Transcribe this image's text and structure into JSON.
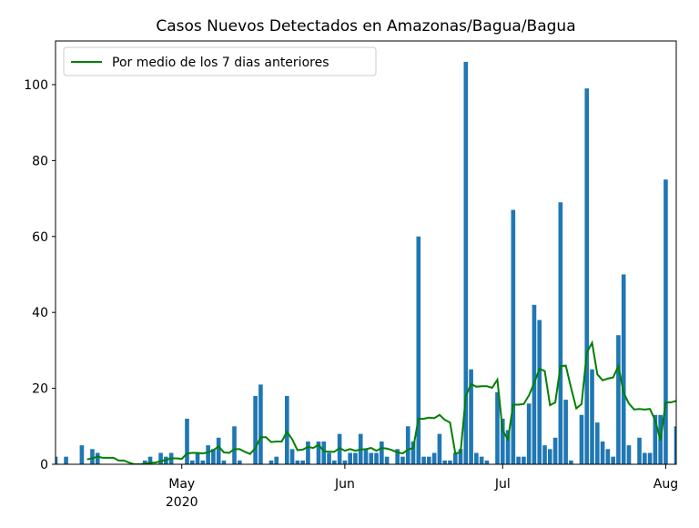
{
  "chart_data": {
    "type": "bar",
    "title": "Casos Nuevos Detectados en Amazonas/Bagua/Bagua",
    "x": [
      "2020-04-07",
      "2020-04-08",
      "2020-04-09",
      "2020-04-10",
      "2020-04-11",
      "2020-04-12",
      "2020-04-13",
      "2020-04-14",
      "2020-04-15",
      "2020-04-16",
      "2020-04-17",
      "2020-04-18",
      "2020-04-19",
      "2020-04-20",
      "2020-04-21",
      "2020-04-22",
      "2020-04-23",
      "2020-04-24",
      "2020-04-25",
      "2020-04-26",
      "2020-04-27",
      "2020-04-28",
      "2020-04-29",
      "2020-04-30",
      "2020-05-01",
      "2020-05-02",
      "2020-05-03",
      "2020-05-04",
      "2020-05-05",
      "2020-05-06",
      "2020-05-07",
      "2020-05-08",
      "2020-05-09",
      "2020-05-10",
      "2020-05-11",
      "2020-05-12",
      "2020-05-13",
      "2020-05-14",
      "2020-05-15",
      "2020-05-16",
      "2020-05-17",
      "2020-05-18",
      "2020-05-19",
      "2020-05-20",
      "2020-05-21",
      "2020-05-22",
      "2020-05-23",
      "2020-05-24",
      "2020-05-25",
      "2020-05-26",
      "2020-05-27",
      "2020-05-28",
      "2020-05-29",
      "2020-05-30",
      "2020-05-31",
      "2020-06-01",
      "2020-06-02",
      "2020-06-03",
      "2020-06-04",
      "2020-06-05",
      "2020-06-06",
      "2020-06-07",
      "2020-06-08",
      "2020-06-09",
      "2020-06-10",
      "2020-06-11",
      "2020-06-12",
      "2020-06-13",
      "2020-06-14",
      "2020-06-15",
      "2020-06-16",
      "2020-06-17",
      "2020-06-18",
      "2020-06-19",
      "2020-06-20",
      "2020-06-21",
      "2020-06-22",
      "2020-06-23",
      "2020-06-24",
      "2020-06-25",
      "2020-06-26",
      "2020-06-27",
      "2020-06-28",
      "2020-06-29",
      "2020-06-30",
      "2020-07-01",
      "2020-07-02",
      "2020-07-03",
      "2020-07-04",
      "2020-07-05",
      "2020-07-06",
      "2020-07-07",
      "2020-07-08",
      "2020-07-09",
      "2020-07-10",
      "2020-07-11",
      "2020-07-12",
      "2020-07-13",
      "2020-07-14",
      "2020-07-15",
      "2020-07-16",
      "2020-07-17",
      "2020-07-18",
      "2020-07-19",
      "2020-07-20",
      "2020-07-21",
      "2020-07-22",
      "2020-07-23",
      "2020-07-24",
      "2020-07-25",
      "2020-07-26",
      "2020-07-27",
      "2020-07-28",
      "2020-07-29",
      "2020-07-30",
      "2020-07-31",
      "2020-08-01",
      "2020-08-02",
      "2020-08-03"
    ],
    "values": [
      2,
      0,
      2,
      0,
      0,
      5,
      0,
      4,
      3,
      0,
      0,
      0,
      0,
      0,
      0,
      0,
      0,
      1,
      2,
      0,
      3,
      2,
      3,
      0,
      0,
      12,
      1,
      3,
      1,
      5,
      4,
      7,
      1,
      0,
      10,
      1,
      0,
      0,
      18,
      21,
      0,
      1,
      2,
      0,
      18,
      4,
      1,
      1,
      6,
      0,
      6,
      6,
      3,
      1,
      8,
      1,
      3,
      3,
      8,
      4,
      3,
      3,
      6,
      2,
      0,
      4,
      2,
      10,
      6,
      60,
      2,
      2,
      3,
      8,
      1,
      1,
      3,
      4,
      106,
      25,
      3,
      2,
      1,
      0,
      19,
      12,
      9,
      67,
      2,
      2,
      16,
      42,
      38,
      5,
      4,
      7,
      69,
      17,
      1,
      0,
      13,
      99,
      25,
      11,
      6,
      4,
      2,
      34,
      50,
      5,
      0,
      7,
      3,
      3,
      13,
      13,
      75,
      0,
      10
    ],
    "color": "#1f77b4",
    "line": {
      "name": "Por medio de los 7 dias anteriores",
      "color": "#008000",
      "values": [
        null,
        null,
        null,
        null,
        null,
        null,
        1.29,
        1.57,
        2.0,
        1.71,
        1.71,
        1.71,
        1.0,
        1.0,
        0.43,
        0,
        0,
        0.14,
        0.43,
        0.43,
        0.86,
        1.14,
        1.57,
        1.57,
        1.43,
        2.86,
        3.0,
        3.0,
        2.86,
        3.14,
        3.71,
        4.71,
        3.14,
        3.0,
        4.0,
        4.0,
        3.29,
        2.71,
        4.29,
        7.14,
        7.14,
        5.86,
        6.0,
        6.0,
        8.57,
        6.57,
        3.71,
        3.86,
        4.57,
        4.29,
        5.14,
        3.43,
        3.29,
        3.29,
        4.29,
        3.57,
        4.0,
        3.57,
        3.86,
        4.0,
        4.29,
        3.57,
        4.29,
        4.14,
        3.71,
        3.14,
        2.86,
        3.86,
        4.29,
        12.0,
        12.0,
        12.29,
        12.14,
        13.0,
        11.71,
        11.0,
        2.86,
        3.14,
        18.0,
        21.14,
        20.43,
        20.57,
        20.57,
        20.14,
        22.29,
        8.86,
        6.57,
        15.71,
        15.71,
        15.86,
        18.14,
        21.43,
        25.14,
        24.57,
        15.57,
        16.29,
        25.86,
        26.0,
        20.14,
        14.71,
        15.86,
        29.43,
        32.0,
        23.71,
        22.14,
        22.57,
        22.86,
        25.86,
        18.86,
        16.0,
        14.43,
        14.57,
        14.43,
        14.57,
        11.57,
        6.29,
        16.29,
        16.29,
        16.71
      ]
    },
    "xlim": [
      "2020-04-07",
      "2020-08-03"
    ],
    "xticks": [
      {
        "value": "2020-05-01",
        "label": "May"
      },
      {
        "value": "2020-06-01",
        "label": "Jun"
      },
      {
        "value": "2020-07-01",
        "label": "Jul"
      },
      {
        "value": "2020-08-01",
        "label": "Aug"
      }
    ],
    "x_year_label": {
      "value": "2020-05-01",
      "label": "2020"
    },
    "ylim": [
      0,
      111.5
    ],
    "yticks": [
      0,
      20,
      40,
      60,
      80,
      100
    ],
    "legend": "upper left"
  }
}
